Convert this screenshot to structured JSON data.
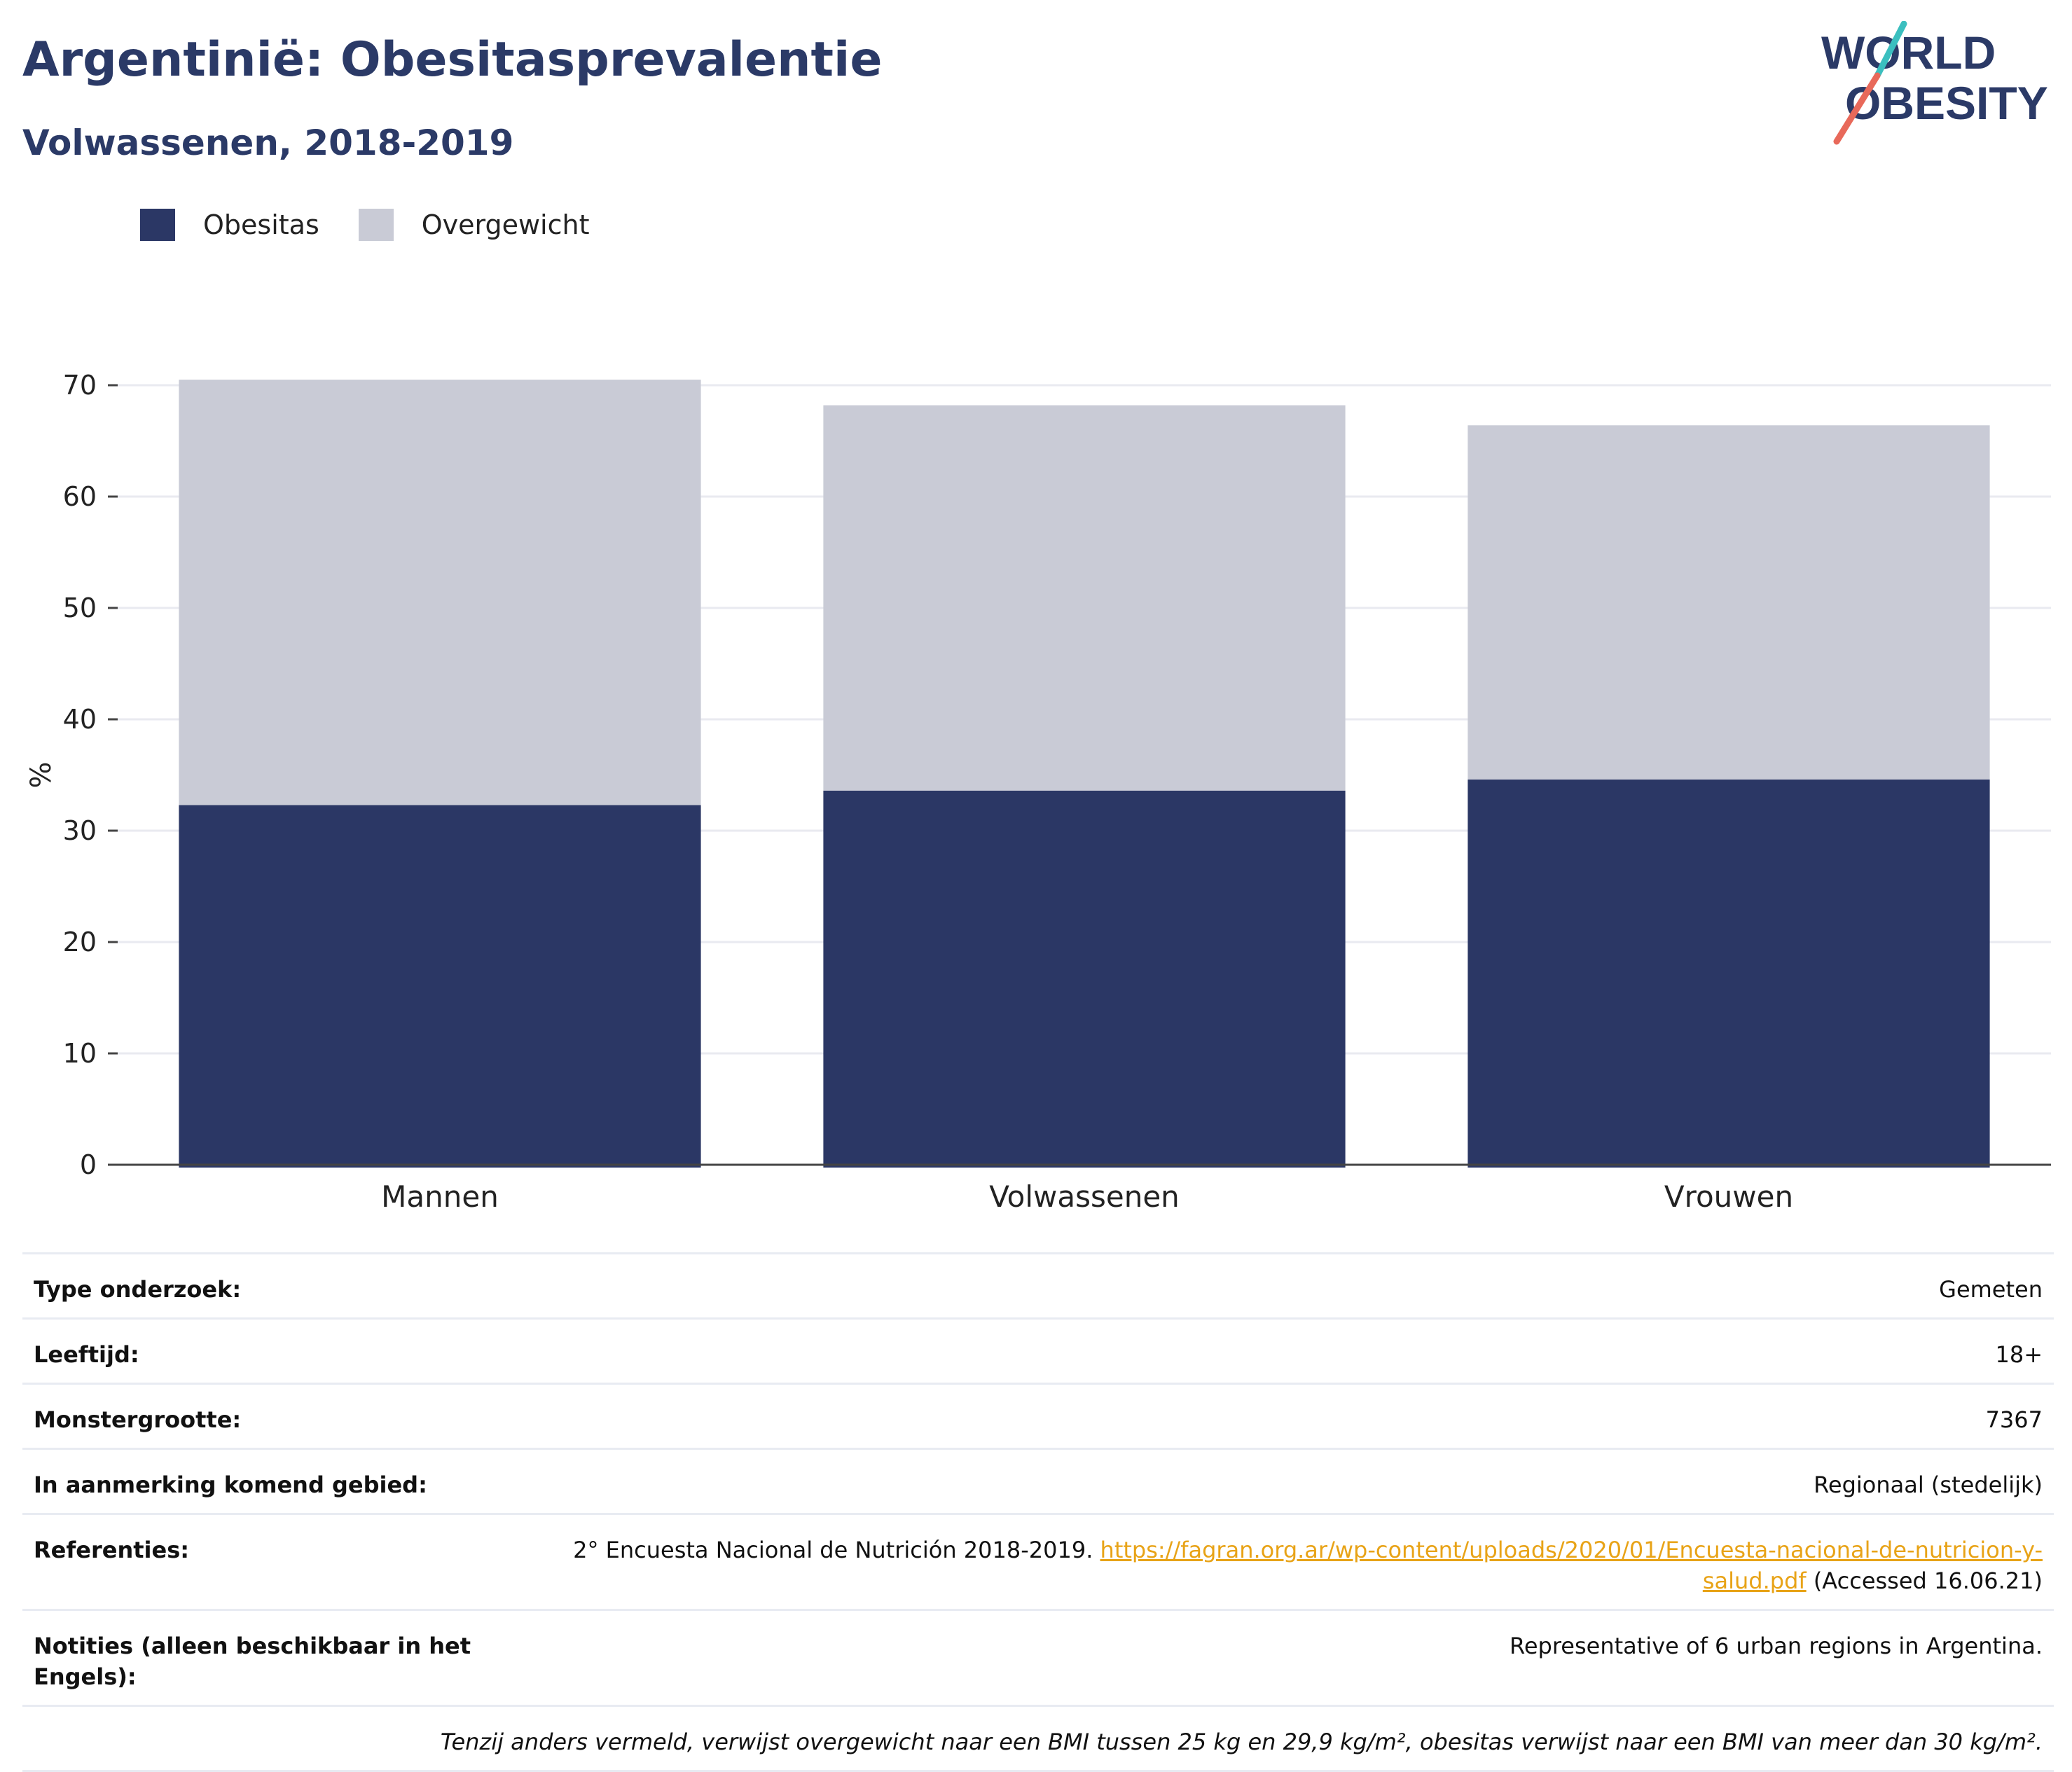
{
  "title": "Argentinië: Obesitasprevalentie",
  "subtitle": "Volwassenen, 2018-2019",
  "logo": {
    "line1": "WORLD",
    "line2": "OBESITY",
    "colors": {
      "text": "#2b3a67",
      "slash_top": "#3bbfbf",
      "slash_bottom": "#e8695a"
    }
  },
  "legend": [
    {
      "label": "Obesitas",
      "color": "#2b3765"
    },
    {
      "label": "Overgewicht",
      "color": "#c9cbd6"
    }
  ],
  "chart_data": {
    "type": "bar",
    "stacked": true,
    "categories": [
      "Mannen",
      "Volwassenen",
      "Vrouwen"
    ],
    "series": [
      {
        "name": "Obesitas",
        "values": [
          32.3,
          33.6,
          34.6
        ],
        "color": "#2b3765"
      },
      {
        "name": "Overgewicht",
        "values": [
          38.2,
          34.6,
          31.8
        ],
        "color": "#c9cbd6"
      }
    ],
    "ylabel": "%",
    "xlabel": "",
    "ylim": [
      0,
      70
    ],
    "yticks": [
      0,
      10,
      20,
      30,
      40,
      50,
      60,
      70
    ],
    "grid": true,
    "legend_position": "top-left"
  },
  "info_rows": [
    {
      "label": "Type onderzoek:",
      "value": "Gemeten"
    },
    {
      "label": "Leeftijd:",
      "value": "18+"
    },
    {
      "label": "Monstergrootte:",
      "value": "7367"
    },
    {
      "label": "In aanmerking komend gebied:",
      "value": "Regionaal (stedelijk)"
    }
  ],
  "references": {
    "label": "Referenties:",
    "text_before": "2° Encuesta Nacional de Nutrición 2018-2019. ",
    "link": "https://fagran.org.ar/wp-content/uploads/2020/01/Encuesta-nacional-de-nutricion-y-salud.pdf",
    "text_after": " (Accessed 16.06.21)"
  },
  "notes": {
    "label": "Notities (alleen beschikbaar in het Engels):",
    "value": "Representative of 6 urban regions in Argentina."
  },
  "footnote": "Tenzij anders vermeld, verwijst overgewicht naar een BMI tussen 25 kg en 29,9 kg/m², obesitas verwijst naar een BMI van meer dan 30 kg/m²."
}
